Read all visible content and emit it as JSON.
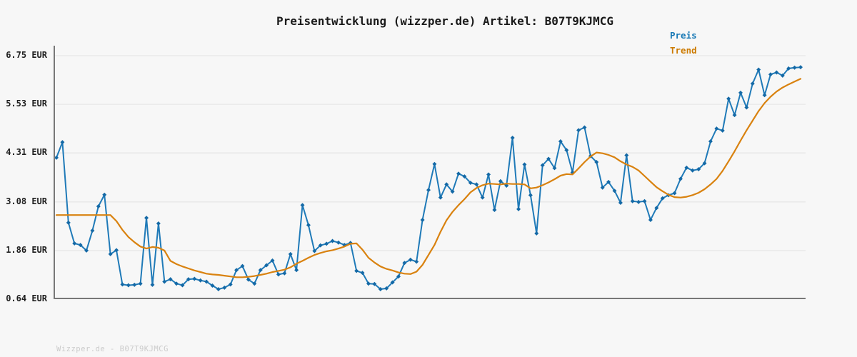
{
  "header": {
    "title": "Preisentwicklung (wizzper.de) Artikel: B07T9KJMCG"
  },
  "footer": {
    "watermark": "Wizzper.de - B07T9KJMCG"
  },
  "colors": {
    "background": "#f7f7f7",
    "price_line": "#1f7ab8",
    "price_marker": "#1469a6",
    "trend_line": "#d9820f",
    "legend_preis_text": "#1778b5",
    "legend_trend_text": "#cc7a00",
    "gridline": "#e7e7e7",
    "axis_spine": "#787878",
    "title_text": "#1a1a1a",
    "watermark_text": "#cbcbcb"
  },
  "chart_data": {
    "type": "line",
    "title": "Preisentwicklung (wizzper.de) Artikel: B07T9KJMCG",
    "xlabel": "",
    "ylabel": "EUR",
    "ylim": [
      0.64,
      6.75
    ],
    "grid": true,
    "legend_position": "top-right",
    "yticks": [
      {
        "value": 6.75,
        "label": "6.75 EUR"
      },
      {
        "value": 5.53,
        "label": "5.53 EUR"
      },
      {
        "value": 4.31,
        "label": "4.31 EUR"
      },
      {
        "value": 3.08,
        "label": "3.08 EUR"
      },
      {
        "value": 1.86,
        "label": "1.86 EUR"
      },
      {
        "value": 0.64,
        "label": "0.64 EUR"
      }
    ],
    "xticks": [],
    "series": [
      {
        "name": "Preis",
        "color": "#1f7ab8",
        "marker": "diamond",
        "values": [
          4.19,
          4.58,
          2.56,
          2.04,
          2.0,
          1.86,
          2.36,
          2.97,
          3.26,
          1.77,
          1.87,
          1.01,
          0.99,
          1.0,
          1.03,
          2.68,
          1.0,
          2.54,
          1.08,
          1.14,
          1.03,
          0.99,
          1.14,
          1.15,
          1.11,
          1.08,
          0.98,
          0.89,
          0.93,
          1.01,
          1.37,
          1.47,
          1.13,
          1.03,
          1.37,
          1.49,
          1.61,
          1.26,
          1.29,
          1.77,
          1.37,
          3.0,
          2.5,
          1.85,
          1.99,
          2.03,
          2.1,
          2.06,
          2.0,
          2.05,
          1.35,
          1.3,
          1.03,
          1.02,
          0.89,
          0.91,
          1.06,
          1.21,
          1.55,
          1.63,
          1.58,
          2.63,
          3.38,
          4.03,
          3.19,
          3.52,
          3.34,
          3.79,
          3.72,
          3.56,
          3.52,
          3.19,
          3.77,
          2.88,
          3.6,
          3.49,
          4.69,
          2.9,
          4.02,
          3.25,
          2.29,
          4.0,
          4.16,
          3.93,
          4.6,
          4.38,
          3.82,
          4.88,
          4.95,
          4.23,
          4.08,
          3.44,
          3.58,
          3.36,
          3.06,
          4.25,
          3.1,
          3.08,
          3.1,
          2.63,
          2.93,
          3.17,
          3.25,
          3.3,
          3.66,
          3.94,
          3.87,
          3.9,
          4.05,
          4.6,
          4.92,
          4.87,
          5.67,
          5.26,
          5.82,
          5.45,
          6.05,
          6.4,
          5.76,
          6.28,
          6.33,
          6.25,
          6.43,
          6.45,
          6.46
        ]
      },
      {
        "name": "Trend",
        "color": "#d9820f",
        "marker": "none",
        "values": [
          2.75,
          2.75,
          2.75,
          2.75,
          2.75,
          2.75,
          2.75,
          2.75,
          2.75,
          2.75,
          2.6,
          2.38,
          2.2,
          2.07,
          1.96,
          1.91,
          1.95,
          1.93,
          1.86,
          1.6,
          1.52,
          1.46,
          1.41,
          1.36,
          1.32,
          1.28,
          1.26,
          1.25,
          1.23,
          1.21,
          1.19,
          1.19,
          1.2,
          1.22,
          1.25,
          1.28,
          1.32,
          1.35,
          1.38,
          1.44,
          1.53,
          1.6,
          1.68,
          1.75,
          1.8,
          1.84,
          1.87,
          1.91,
          1.96,
          2.03,
          2.04,
          1.88,
          1.68,
          1.56,
          1.46,
          1.4,
          1.36,
          1.31,
          1.28,
          1.27,
          1.33,
          1.5,
          1.75,
          2.0,
          2.33,
          2.62,
          2.83,
          3.0,
          3.15,
          3.32,
          3.43,
          3.5,
          3.54,
          3.53,
          3.52,
          3.54,
          3.53,
          3.53,
          3.52,
          3.42,
          3.44,
          3.5,
          3.57,
          3.65,
          3.74,
          3.78,
          3.77,
          3.92,
          4.08,
          4.22,
          4.32,
          4.3,
          4.26,
          4.2,
          4.1,
          4.02,
          3.96,
          3.87,
          3.73,
          3.59,
          3.45,
          3.35,
          3.26,
          3.2,
          3.19,
          3.21,
          3.25,
          3.31,
          3.4,
          3.52,
          3.66,
          3.86,
          4.1,
          4.35,
          4.62,
          4.88,
          5.12,
          5.36,
          5.56,
          5.72,
          5.85,
          5.95,
          6.03,
          6.1,
          6.17
        ]
      }
    ]
  }
}
